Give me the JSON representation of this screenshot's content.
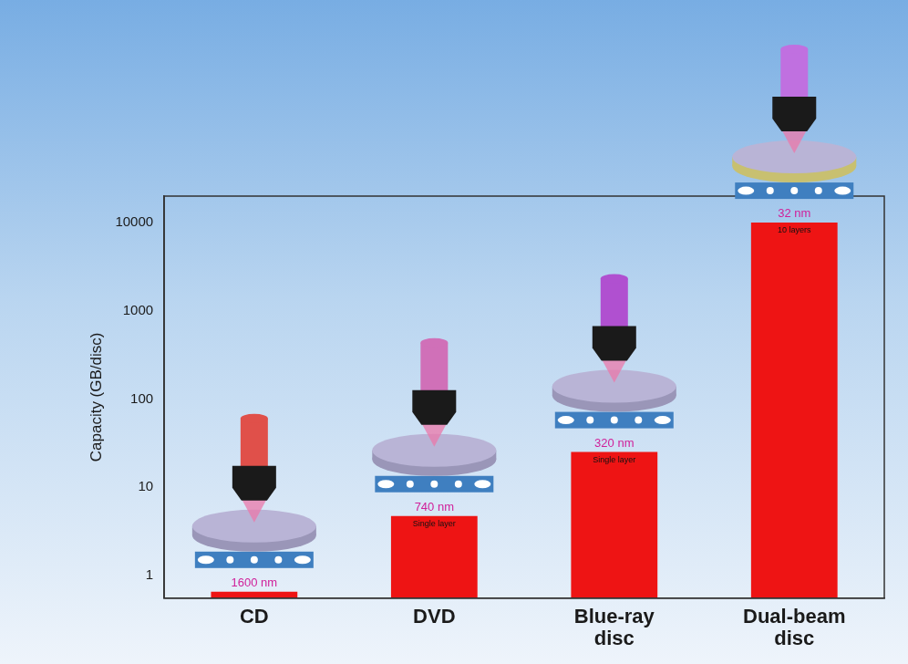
{
  "chart_data": {
    "type": "bar",
    "categories": [
      "CD",
      "DVD",
      "Blue-ray disc",
      "Dual-beam disc"
    ],
    "values": [
      0.65,
      4.7,
      25,
      10000
    ],
    "color": "#ee1414",
    "y_label": "Capacity (GB/disc)",
    "ylim": [
      0.55,
      20000
    ],
    "yticks": [
      1,
      10,
      100,
      1000,
      10000
    ],
    "log": "y",
    "grid": false,
    "pitch_labels": [
      "1600 nm",
      "740 nm",
      "320 nm",
      "32 nm"
    ],
    "layer_labels": [
      {
        "category": "DVD",
        "text": "Single layer"
      },
      {
        "category": "Blue-ray disc",
        "text": "Single layer"
      },
      {
        "category": "Dual-beam disc",
        "text": "10 layers"
      }
    ]
  }
}
